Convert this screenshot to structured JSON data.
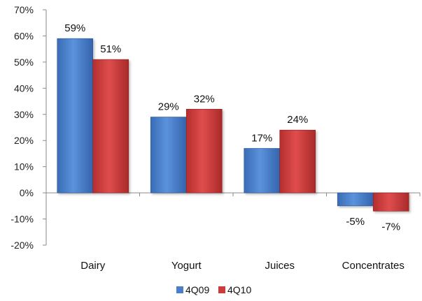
{
  "chart_data": {
    "type": "bar",
    "categories": [
      "Dairy",
      "Yogurt",
      "Juices",
      "Concentrates"
    ],
    "series": [
      {
        "name": "4Q09",
        "values": [
          59,
          29,
          17,
          -5
        ],
        "labels": [
          "59%",
          "29%",
          "17%",
          "-5%"
        ]
      },
      {
        "name": "4Q10",
        "values": [
          51,
          32,
          24,
          -7
        ],
        "labels": [
          "51%",
          "32%",
          "24%",
          "-7%"
        ]
      }
    ],
    "ylim": [
      -20,
      70
    ],
    "yticks": [
      70,
      60,
      50,
      40,
      30,
      20,
      10,
      0,
      -10,
      -20
    ],
    "ytick_labels": [
      "70%",
      "60%",
      "50%",
      "40%",
      "30%",
      "20%",
      "10%",
      "0%",
      "-10%",
      "-20%"
    ],
    "title": "",
    "xlabel": "",
    "ylabel": "",
    "grid": false,
    "legend_position": "bottom",
    "colors": {
      "4Q09": "#4a7fc8",
      "4Q10": "#cc3b3b"
    }
  }
}
